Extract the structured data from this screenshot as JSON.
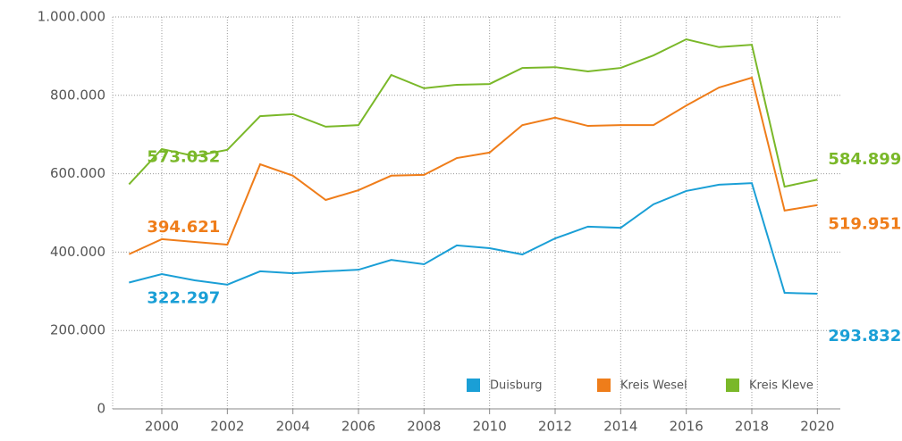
{
  "chart_data": {
    "type": "line",
    "x": [
      1999,
      2000,
      2001,
      2002,
      2003,
      2004,
      2005,
      2006,
      2007,
      2008,
      2009,
      2010,
      2011,
      2012,
      2013,
      2014,
      2015,
      2016,
      2017,
      2018,
      2019,
      2020
    ],
    "series": [
      {
        "name": "Duisburg",
        "color": "#1a9fd6",
        "values": [
          322297,
          344000,
          328000,
          317000,
          351000,
          346000,
          351000,
          355000,
          380000,
          369000,
          417000,
          410000,
          394000,
          435000,
          465000,
          462000,
          522000,
          556000,
          572000,
          576000,
          296000,
          293832
        ],
        "value_labels": [
          "322.297",
          null,
          null,
          null,
          null,
          null,
          null,
          null,
          null,
          null,
          null,
          null,
          null,
          null,
          null,
          null,
          null,
          null,
          null,
          null,
          null,
          "293.832"
        ]
      },
      {
        "name": "Kreis Wesel",
        "color": "#ef7d1a",
        "values": [
          394621,
          433000,
          426000,
          419000,
          624000,
          595000,
          533000,
          558000,
          595000,
          597000,
          640000,
          654000,
          724000,
          743000,
          722000,
          724000,
          724000,
          774000,
          820000,
          845000,
          506000,
          519951
        ],
        "value_labels": [
          "394.621",
          null,
          null,
          null,
          null,
          null,
          null,
          null,
          null,
          null,
          null,
          null,
          null,
          null,
          null,
          null,
          null,
          null,
          null,
          null,
          null,
          "519.951"
        ]
      },
      {
        "name": "Kreis Kleve",
        "color": "#7ab829",
        "values": [
          573032,
          663000,
          645000,
          661000,
          747000,
          752000,
          720000,
          724000,
          852000,
          818000,
          827000,
          829000,
          870000,
          872000,
          861000,
          870000,
          902000,
          943000,
          923000,
          929000,
          567000,
          584899
        ],
        "value_labels": [
          "573.032",
          null,
          null,
          null,
          null,
          null,
          null,
          null,
          null,
          null,
          null,
          null,
          null,
          null,
          null,
          null,
          null,
          null,
          null,
          null,
          null,
          "584.899"
        ]
      }
    ],
    "xlim": [
      1998.5,
      2020.7
    ],
    "xticks": [
      2000,
      2002,
      2004,
      2006,
      2008,
      2010,
      2012,
      2014,
      2016,
      2018,
      2020
    ],
    "ylim": [
      0,
      1000000
    ],
    "yticks": [
      0,
      {
        "value": 200000,
        "label": "200.000"
      },
      {
        "value": 400000,
        "label": "400.000"
      },
      {
        "value": 600000,
        "label": "600.000"
      },
      {
        "value": 800000,
        "label": "800.000"
      },
      {
        "value": 1000000,
        "label": "1.000.000"
      }
    ],
    "grid": true,
    "legend": "lower right"
  }
}
